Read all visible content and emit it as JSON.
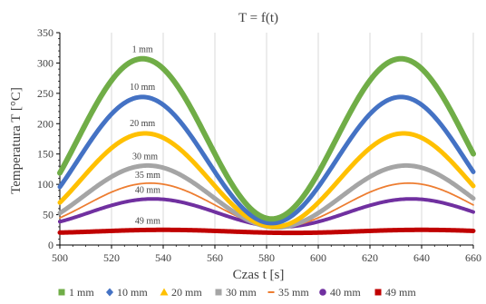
{
  "chart_data": {
    "type": "line",
    "title": "T = f(t)",
    "xlabel": "Czas t [s]",
    "ylabel": "Temperatura T [°C]",
    "xlim": [
      500,
      660
    ],
    "ylim": [
      0,
      350
    ],
    "x_ticks": [
      500,
      520,
      540,
      560,
      580,
      600,
      620,
      640,
      660
    ],
    "y_ticks": [
      0,
      50,
      100,
      150,
      200,
      250,
      300,
      350
    ],
    "grid": "vertical",
    "legend_position": "bottom",
    "period": 100,
    "series": [
      {
        "name": "1 mm",
        "color": "#70AD47",
        "marker": "square",
        "width": 6,
        "label_x": 532,
        "label_y": 318,
        "x_peak": 532,
        "mean": 175,
        "amplitude": 132
      },
      {
        "name": "10 mm",
        "color": "#4472C4",
        "marker": "diamond",
        "width": 5,
        "label_x": 532,
        "label_y": 256,
        "x_peak": 532,
        "mean": 140,
        "amplitude": 104
      },
      {
        "name": "20 mm",
        "color": "#FFC000",
        "marker": "triangle",
        "width": 5,
        "label_x": 532,
        "label_y": 196,
        "x_peak": 533,
        "mean": 107,
        "amplitude": 77
      },
      {
        "name": "30 mm",
        "color": "#A5A5A5",
        "marker": "square",
        "width": 5,
        "label_x": 533,
        "label_y": 141,
        "x_peak": 534,
        "mean": 80,
        "amplitude": 51
      },
      {
        "name": "35 mm",
        "color": "#ED7D31",
        "marker": "dash",
        "width": 1.8,
        "label_x": 534,
        "label_y": 111,
        "x_peak": 535,
        "mean": 66,
        "amplitude": 36
      },
      {
        "name": "40 mm",
        "color": "#7030A0",
        "marker": "circle",
        "width": 4,
        "label_x": 534,
        "label_y": 86,
        "x_peak": 536,
        "mean": 53,
        "amplitude": 23
      },
      {
        "name": "49 mm",
        "color": "#C00000",
        "marker": "square",
        "width": 5,
        "label_x": 534,
        "label_y": 35,
        "x_peak": 540,
        "mean": 22.5,
        "amplitude": 2.5
      }
    ]
  }
}
